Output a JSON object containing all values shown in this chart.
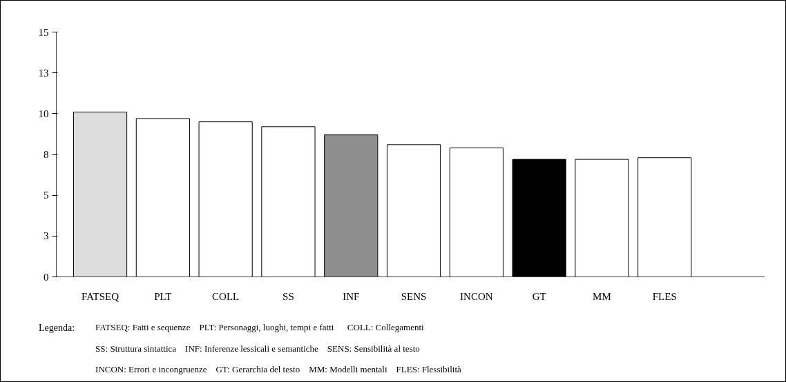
{
  "chart_data": {
    "type": "bar",
    "categories": [
      "FATSEQ",
      "PLT",
      "COLL",
      "SS",
      "INF",
      "SENS",
      "INCON",
      "GT",
      "MM",
      "FLES"
    ],
    "values": [
      10.1,
      9.7,
      9.5,
      9.2,
      8.7,
      8.1,
      7.9,
      7.2,
      7.2,
      7.3
    ],
    "colors": [
      "#dddddd",
      "#ffffff",
      "#ffffff",
      "#ffffff",
      "#8e8e8e",
      "#ffffff",
      "#ffffff",
      "#000000",
      "#ffffff",
      "#ffffff"
    ],
    "ylim": [
      0,
      15
    ],
    "yticks": [
      0,
      {
        "value": 2.5,
        "label": "3"
      },
      5,
      {
        "value": 7.5,
        "label": "8"
      },
      10,
      {
        "value": 12.5,
        "label": "13"
      },
      15
    ],
    "annotations": [
      "Legenda:",
      "FATSEQ: Fatti e sequenze    PLT: Personaggi, luoghi, tempi e fatti      COLL: Collegamenti",
      "SS: Struttura sintattica    INF: Inferenze lessicali e semantiche    SENS: Sensibilità al testo",
      "INCON: Errori e incongruenze    GT: Gerarchia del testo    MM: Modelli mentali    FLES: Flessibilità"
    ]
  }
}
